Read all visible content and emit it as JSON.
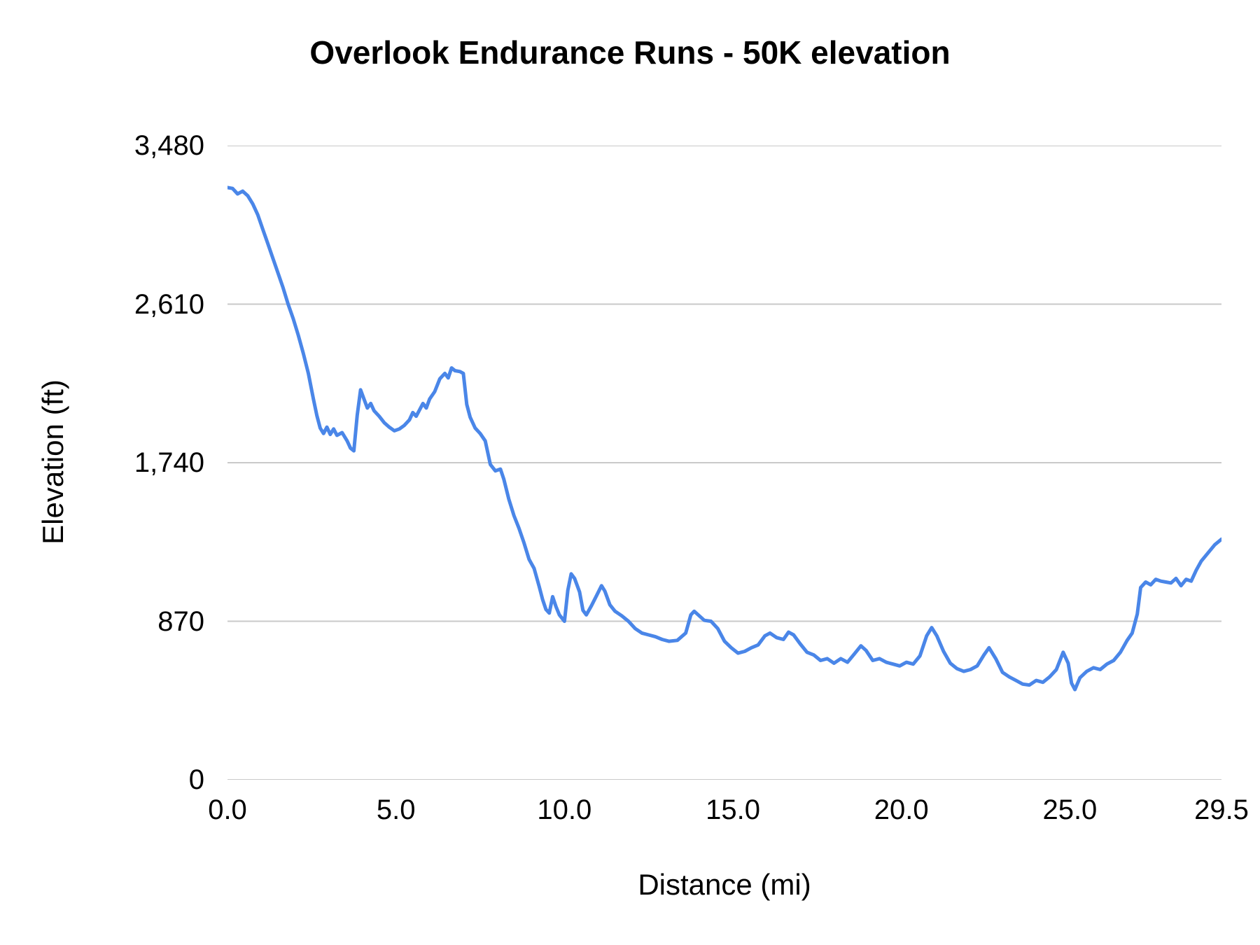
{
  "chart_data": {
    "type": "line",
    "title": "Overlook Endurance Runs - 50K elevation",
    "xlabel": "Distance (mi)",
    "ylabel": "Elevation (ft)",
    "xlim": [
      0,
      29.5
    ],
    "ylim": [
      0,
      3480
    ],
    "grid": true,
    "legend_position": "none",
    "line_color": "#4a86e8",
    "gridline_color": "#c9c9c9",
    "x_ticks": [
      "0.0",
      "5.0",
      "10.0",
      "15.0",
      "20.0",
      "25.0",
      "29.5"
    ],
    "x_tick_values": [
      0,
      5,
      10,
      15,
      20,
      25,
      29.5
    ],
    "y_ticks": [
      "0",
      "870",
      "1,740",
      "2,610",
      "3,480"
    ],
    "y_tick_values": [
      0,
      870,
      1740,
      2610,
      3480
    ],
    "series": [
      {
        "name": "Elevation",
        "points": [
          [
            0.0,
            3250
          ],
          [
            0.15,
            3245
          ],
          [
            0.3,
            3215
          ],
          [
            0.45,
            3230
          ],
          [
            0.6,
            3205
          ],
          [
            0.75,
            3160
          ],
          [
            0.9,
            3100
          ],
          [
            1.05,
            3020
          ],
          [
            1.2,
            2940
          ],
          [
            1.35,
            2860
          ],
          [
            1.5,
            2780
          ],
          [
            1.65,
            2700
          ],
          [
            1.8,
            2610
          ],
          [
            1.95,
            2530
          ],
          [
            2.1,
            2440
          ],
          [
            2.25,
            2340
          ],
          [
            2.4,
            2230
          ],
          [
            2.55,
            2090
          ],
          [
            2.65,
            2000
          ],
          [
            2.75,
            1930
          ],
          [
            2.85,
            1900
          ],
          [
            2.95,
            1935
          ],
          [
            3.05,
            1895
          ],
          [
            3.15,
            1925
          ],
          [
            3.25,
            1890
          ],
          [
            3.4,
            1905
          ],
          [
            3.55,
            1860
          ],
          [
            3.65,
            1820
          ],
          [
            3.75,
            1805
          ],
          [
            3.85,
            2000
          ],
          [
            3.95,
            2140
          ],
          [
            4.05,
            2090
          ],
          [
            4.15,
            2040
          ],
          [
            4.25,
            2065
          ],
          [
            4.35,
            2025
          ],
          [
            4.5,
            1995
          ],
          [
            4.65,
            1960
          ],
          [
            4.8,
            1935
          ],
          [
            4.95,
            1915
          ],
          [
            5.1,
            1925
          ],
          [
            5.25,
            1945
          ],
          [
            5.4,
            1975
          ],
          [
            5.5,
            2015
          ],
          [
            5.6,
            1995
          ],
          [
            5.7,
            2030
          ],
          [
            5.8,
            2065
          ],
          [
            5.9,
            2040
          ],
          [
            6.0,
            2090
          ],
          [
            6.15,
            2130
          ],
          [
            6.3,
            2200
          ],
          [
            6.45,
            2230
          ],
          [
            6.55,
            2205
          ],
          [
            6.65,
            2260
          ],
          [
            6.75,
            2245
          ],
          [
            6.9,
            2240
          ],
          [
            7.0,
            2230
          ],
          [
            7.1,
            2060
          ],
          [
            7.2,
            1990
          ],
          [
            7.35,
            1930
          ],
          [
            7.5,
            1900
          ],
          [
            7.65,
            1860
          ],
          [
            7.8,
            1730
          ],
          [
            7.95,
            1695
          ],
          [
            8.1,
            1705
          ],
          [
            8.2,
            1650
          ],
          [
            8.35,
            1540
          ],
          [
            8.5,
            1450
          ],
          [
            8.65,
            1380
          ],
          [
            8.8,
            1300
          ],
          [
            8.95,
            1210
          ],
          [
            9.1,
            1160
          ],
          [
            9.25,
            1060
          ],
          [
            9.35,
            990
          ],
          [
            9.45,
            935
          ],
          [
            9.55,
            915
          ],
          [
            9.65,
            1005
          ],
          [
            9.75,
            950
          ],
          [
            9.85,
            905
          ],
          [
            10.0,
            870
          ],
          [
            10.1,
            1040
          ],
          [
            10.2,
            1130
          ],
          [
            10.3,
            1105
          ],
          [
            10.45,
            1030
          ],
          [
            10.55,
            930
          ],
          [
            10.65,
            905
          ],
          [
            10.8,
            955
          ],
          [
            10.95,
            1010
          ],
          [
            11.1,
            1065
          ],
          [
            11.2,
            1035
          ],
          [
            11.35,
            960
          ],
          [
            11.5,
            925
          ],
          [
            11.7,
            900
          ],
          [
            11.9,
            870
          ],
          [
            12.1,
            830
          ],
          [
            12.3,
            805
          ],
          [
            12.5,
            795
          ],
          [
            12.7,
            785
          ],
          [
            12.9,
            770
          ],
          [
            13.1,
            760
          ],
          [
            13.35,
            765
          ],
          [
            13.6,
            805
          ],
          [
            13.75,
            905
          ],
          [
            13.85,
            925
          ],
          [
            14.0,
            900
          ],
          [
            14.15,
            875
          ],
          [
            14.35,
            870
          ],
          [
            14.55,
            830
          ],
          [
            14.75,
            760
          ],
          [
            14.95,
            725
          ],
          [
            15.15,
            695
          ],
          [
            15.35,
            705
          ],
          [
            15.55,
            725
          ],
          [
            15.75,
            740
          ],
          [
            15.95,
            790
          ],
          [
            16.1,
            805
          ],
          [
            16.3,
            780
          ],
          [
            16.5,
            770
          ],
          [
            16.65,
            810
          ],
          [
            16.8,
            795
          ],
          [
            17.0,
            745
          ],
          [
            17.2,
            700
          ],
          [
            17.4,
            685
          ],
          [
            17.6,
            655
          ],
          [
            17.8,
            665
          ],
          [
            18.0,
            640
          ],
          [
            18.2,
            665
          ],
          [
            18.4,
            645
          ],
          [
            18.6,
            690
          ],
          [
            18.8,
            735
          ],
          [
            18.95,
            710
          ],
          [
            19.15,
            655
          ],
          [
            19.35,
            665
          ],
          [
            19.55,
            645
          ],
          [
            19.75,
            635
          ],
          [
            19.95,
            625
          ],
          [
            20.15,
            645
          ],
          [
            20.35,
            635
          ],
          [
            20.55,
            680
          ],
          [
            20.75,
            790
          ],
          [
            20.9,
            835
          ],
          [
            21.05,
            790
          ],
          [
            21.25,
            705
          ],
          [
            21.45,
            640
          ],
          [
            21.65,
            610
          ],
          [
            21.85,
            595
          ],
          [
            22.05,
            605
          ],
          [
            22.25,
            625
          ],
          [
            22.45,
            685
          ],
          [
            22.6,
            725
          ],
          [
            22.8,
            665
          ],
          [
            23.0,
            590
          ],
          [
            23.2,
            565
          ],
          [
            23.4,
            545
          ],
          [
            23.6,
            525
          ],
          [
            23.8,
            520
          ],
          [
            24.0,
            545
          ],
          [
            24.2,
            535
          ],
          [
            24.4,
            565
          ],
          [
            24.6,
            605
          ],
          [
            24.8,
            700
          ],
          [
            24.95,
            640
          ],
          [
            25.05,
            530
          ],
          [
            25.15,
            495
          ],
          [
            25.3,
            560
          ],
          [
            25.5,
            595
          ],
          [
            25.7,
            615
          ],
          [
            25.9,
            605
          ],
          [
            26.1,
            635
          ],
          [
            26.3,
            655
          ],
          [
            26.5,
            700
          ],
          [
            26.7,
            765
          ],
          [
            26.85,
            805
          ],
          [
            27.0,
            910
          ],
          [
            27.1,
            1055
          ],
          [
            27.25,
            1085
          ],
          [
            27.4,
            1070
          ],
          [
            27.55,
            1100
          ],
          [
            27.7,
            1090
          ],
          [
            27.85,
            1085
          ],
          [
            28.0,
            1080
          ],
          [
            28.15,
            1105
          ],
          [
            28.3,
            1065
          ],
          [
            28.45,
            1100
          ],
          [
            28.6,
            1090
          ],
          [
            28.75,
            1150
          ],
          [
            28.9,
            1200
          ],
          [
            29.1,
            1245
          ],
          [
            29.3,
            1290
          ],
          [
            29.5,
            1320
          ]
        ]
      }
    ]
  }
}
